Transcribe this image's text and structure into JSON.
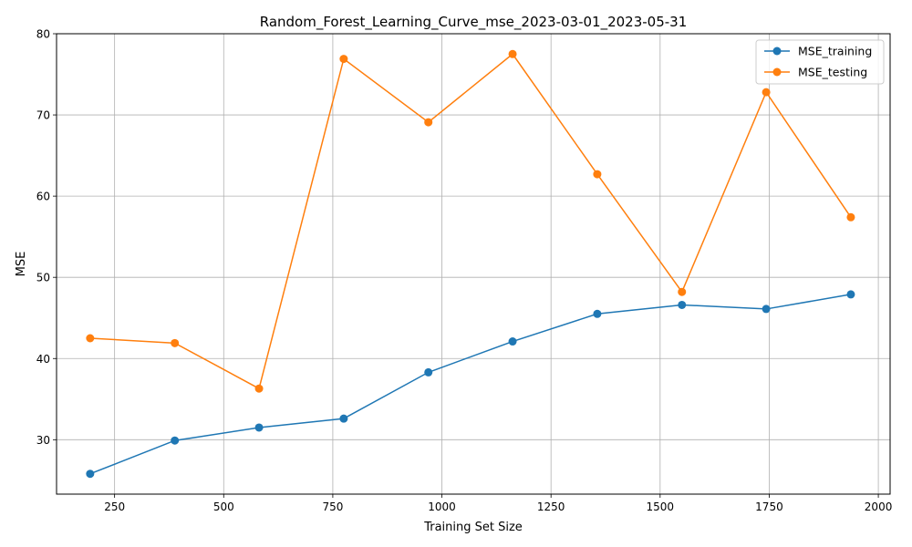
{
  "chart_data": {
    "type": "line",
    "title": "Random_Forest_Learning_Curve_mse_2023-03-01_2023-05-31",
    "xlabel": "Training Set Size",
    "ylabel": "MSE",
    "xlim": [
      117,
      2027
    ],
    "ylim": [
      23.3,
      80
    ],
    "xticks": [
      250,
      500,
      750,
      1000,
      1250,
      1500,
      1750,
      2000
    ],
    "yticks": [
      30,
      40,
      50,
      60,
      70,
      80
    ],
    "grid": true,
    "legend_position": "upper right",
    "x": [
      194,
      388,
      581,
      775,
      969,
      1162,
      1356,
      1550,
      1743,
      1937
    ],
    "series": [
      {
        "name": "MSE_training",
        "color": "#1f77b4",
        "values": [
          25.8,
          29.9,
          31.5,
          32.6,
          38.3,
          42.1,
          45.5,
          46.6,
          46.1,
          47.9
        ]
      },
      {
        "name": "MSE_testing",
        "color": "#ff7f0e",
        "values": [
          42.5,
          41.9,
          36.3,
          76.9,
          69.1,
          77.5,
          62.7,
          48.2,
          72.8,
          57.4
        ]
      }
    ]
  }
}
